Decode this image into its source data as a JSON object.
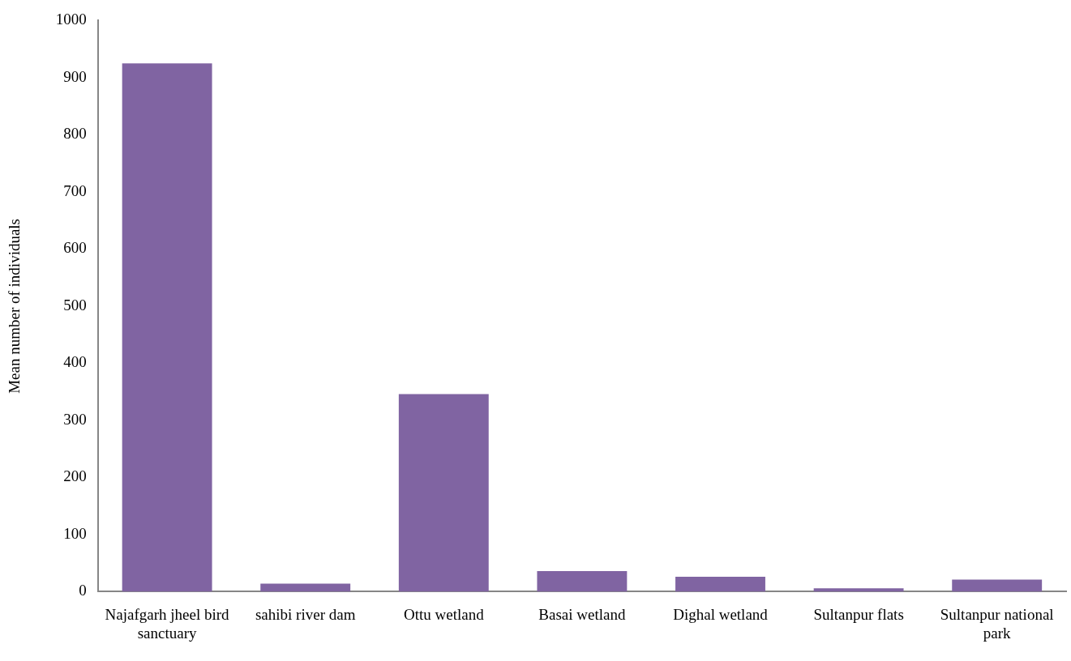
{
  "chart_data": {
    "type": "bar",
    "ylabel": "Mean number of individuals",
    "categories": [
      "Najafgarh jheel bird sanctuary",
      "sahibi river dam",
      "Ottu wetland",
      "Basai wetland",
      "Dighal wetland",
      "Sultanpur flats",
      "Sultanpur national park"
    ],
    "values": [
      925,
      14,
      346,
      36,
      26,
      6,
      21
    ],
    "color": "#8064a2",
    "ylim": [
      0,
      1000
    ],
    "yticks": [
      0,
      100,
      200,
      300,
      400,
      500,
      600,
      700,
      800,
      900,
      1000
    ],
    "grid": false,
    "legend": false
  }
}
